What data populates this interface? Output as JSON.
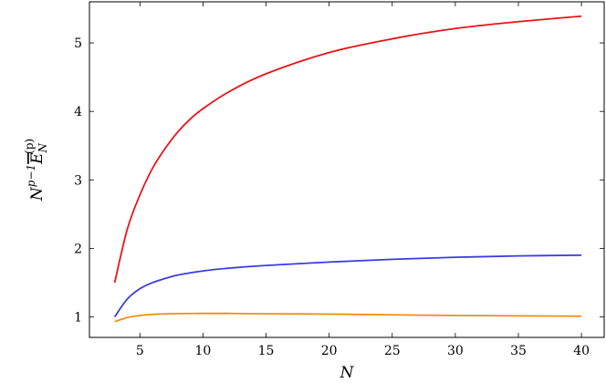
{
  "chart_data": {
    "type": "line",
    "xlabel": "N",
    "ylabel": {
      "base": "N",
      "exponent": "p−1",
      "symbol": "E",
      "subscript": "N",
      "superscript": "(p)"
    },
    "xlim": [
      1,
      41.8
    ],
    "ylim": [
      0.7,
      5.6
    ],
    "xticks": [
      5,
      10,
      15,
      20,
      25,
      30,
      35,
      40
    ],
    "yticks": [
      1,
      2,
      3,
      4,
      5
    ],
    "grid": false,
    "series": [
      {
        "color": "#e8141b",
        "x": [
          3,
          4,
          5,
          6,
          7,
          8,
          9,
          10,
          12,
          15,
          20,
          25,
          30,
          35,
          40
        ],
        "y": [
          1.5,
          2.28,
          2.78,
          3.17,
          3.46,
          3.7,
          3.89,
          4.04,
          4.28,
          4.55,
          4.86,
          5.06,
          5.21,
          5.31,
          5.39
        ]
      },
      {
        "color": "#3b3be6",
        "x": [
          3,
          4,
          5,
          6,
          7,
          8,
          10,
          12,
          15,
          20,
          25,
          30,
          35,
          40
        ],
        "y": [
          1.0,
          1.26,
          1.41,
          1.5,
          1.56,
          1.61,
          1.67,
          1.71,
          1.75,
          1.8,
          1.84,
          1.87,
          1.89,
          1.9
        ]
      },
      {
        "color": "#f28c14",
        "x": [
          3,
          4,
          5,
          6,
          7,
          8,
          10,
          12,
          15,
          20,
          25,
          30,
          35,
          40
        ],
        "y": [
          0.93,
          0.99,
          1.02,
          1.035,
          1.043,
          1.048,
          1.05,
          1.05,
          1.045,
          1.04,
          1.03,
          1.02,
          1.015,
          1.01
        ]
      }
    ]
  }
}
